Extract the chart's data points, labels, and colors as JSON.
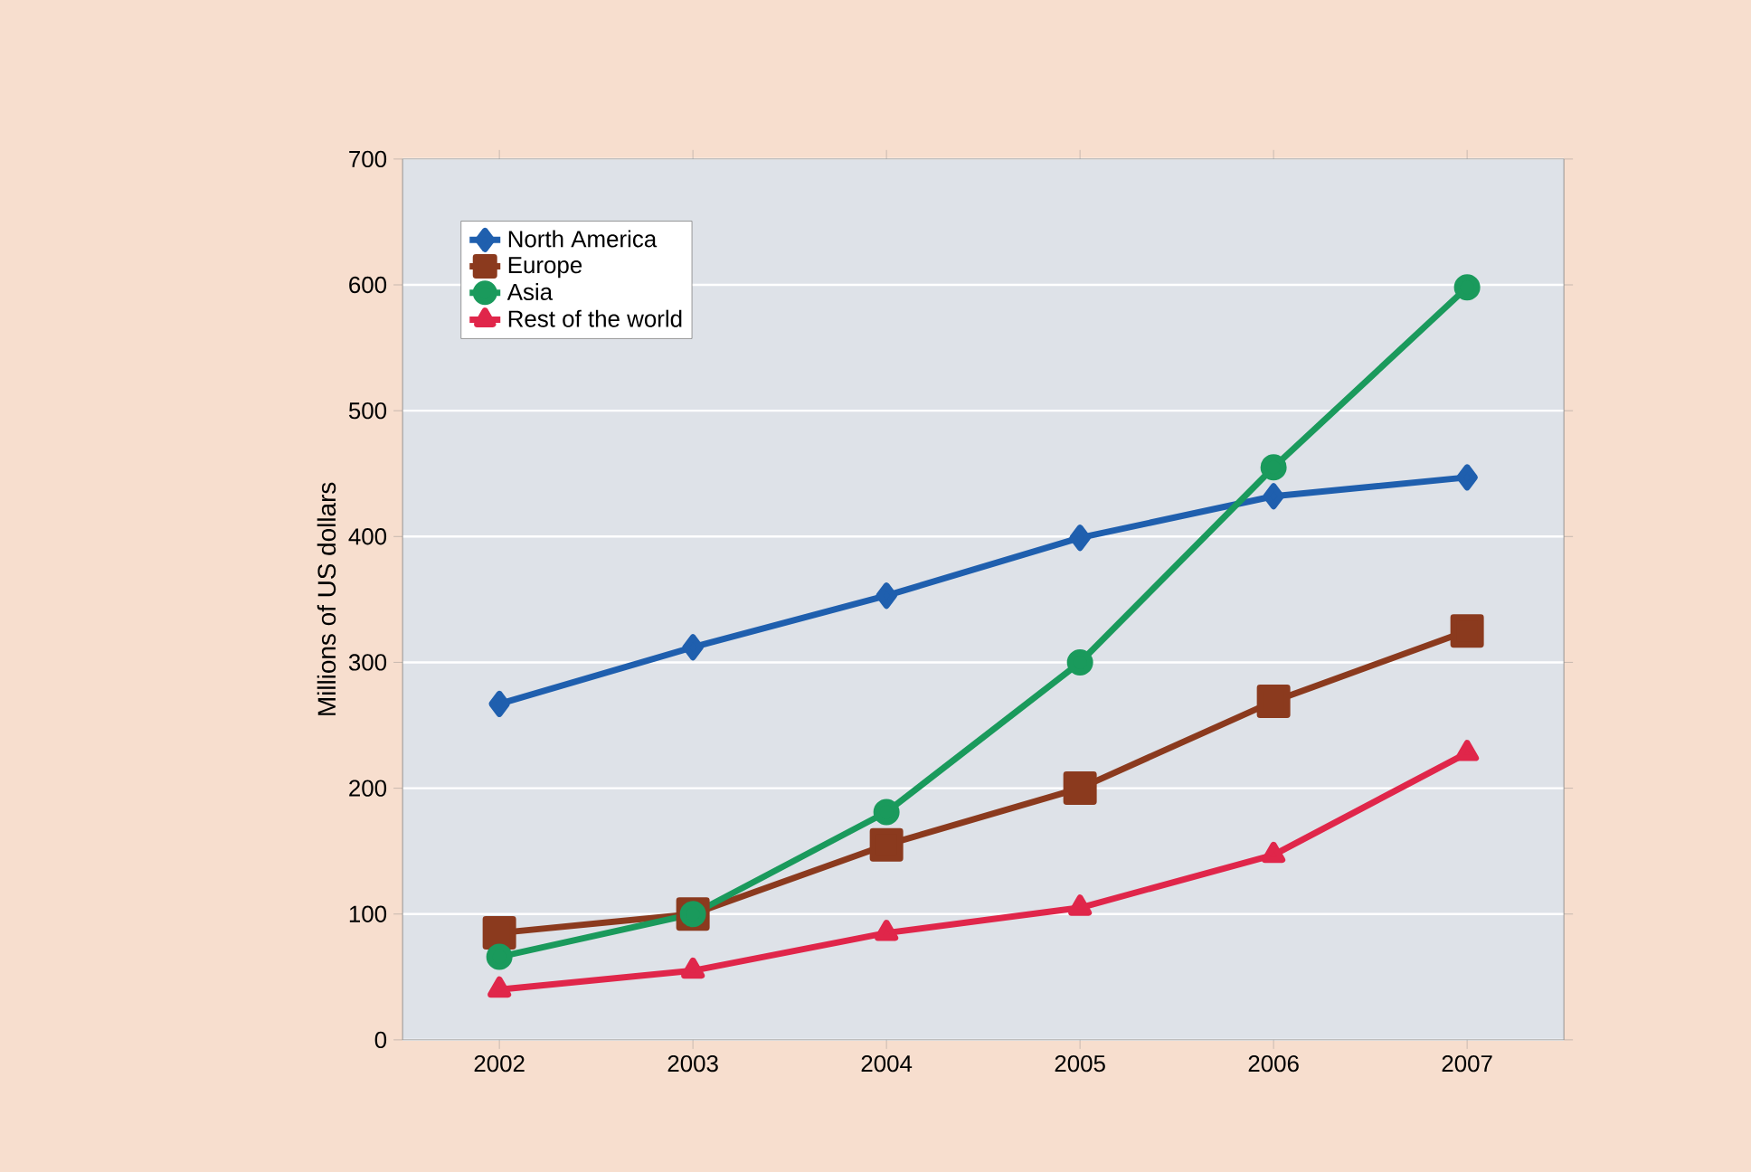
{
  "chart_data": {
    "type": "line",
    "ylabel": "Millions of US dollars",
    "categories": [
      "2002",
      "2003",
      "2004",
      "2005",
      "2006",
      "2007"
    ],
    "series": [
      {
        "name": "North America",
        "color": "#1f5fae",
        "marker": "diamond",
        "values": [
          267,
          312,
          353,
          399,
          432,
          447
        ]
      },
      {
        "name": "Europe",
        "color": "#8b3a1e",
        "marker": "square",
        "values": [
          85,
          100,
          155,
          200,
          269,
          325
        ]
      },
      {
        "name": "Asia",
        "color": "#1a9a5c",
        "marker": "circle",
        "values": [
          66,
          100,
          181,
          300,
          455,
          598
        ]
      },
      {
        "name": "Rest of the world",
        "color": "#e0264a",
        "marker": "triangle",
        "values": [
          40,
          55,
          85,
          105,
          147,
          228
        ]
      }
    ],
    "ylim": [
      0,
      700
    ],
    "yticks": [
      0,
      100,
      200,
      300,
      400,
      500,
      600,
      700
    ],
    "grid": "y",
    "legend": "top left",
    "line_style": "solid"
  }
}
